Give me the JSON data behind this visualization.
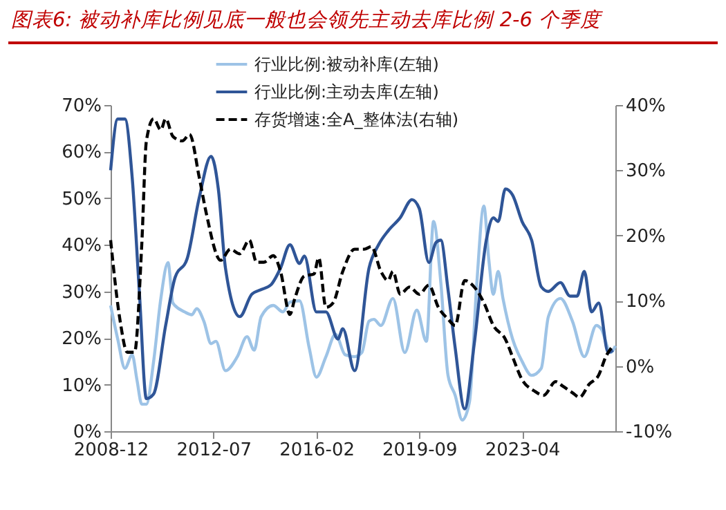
{
  "chart_data": {
    "type": "line",
    "title": "图表6:  被动补库比例见底一般也会领先主动去库比例 2-6 个季度",
    "legend": "top",
    "xlim": [
      "2008-12",
      "2026-07"
    ],
    "xticks": [
      "2008-12",
      "2012-07",
      "2016-02",
      "2019-09",
      "2023-04"
    ],
    "ylim": [
      0,
      70
    ],
    "yticks": [
      {
        "value": 0,
        "label": "0%"
      },
      {
        "value": 10,
        "label": "10%"
      },
      {
        "value": 20,
        "label": "20%"
      },
      {
        "value": 30,
        "label": "30%"
      },
      {
        "value": 40,
        "label": "40%"
      },
      {
        "value": 50,
        "label": "50%"
      },
      {
        "value": 60,
        "label": "60%"
      },
      {
        "value": 70,
        "label": "70%"
      }
    ],
    "y2lim": [
      -10,
      40
    ],
    "y2ticks": [
      {
        "value": -10,
        "label": "-10%"
      },
      {
        "value": 0,
        "label": "0%"
      },
      {
        "value": 10,
        "label": "10%"
      },
      {
        "value": 20,
        "label": "20%"
      },
      {
        "value": 30,
        "label": "30%"
      },
      {
        "value": 40,
        "label": "40%"
      }
    ],
    "series": [
      {
        "name": "行业比例:被动补库(左轴)",
        "color": "#9dc3e6",
        "line_style": "solid",
        "x": [
          "2008-12",
          "2009-03",
          "2009-06",
          "2009-09",
          "2009-11",
          "2010-01",
          "2010-03",
          "2010-06",
          "2010-09",
          "2010-12",
          "2011-02",
          "2011-07",
          "2011-10",
          "2011-12",
          "2012-03",
          "2012-06",
          "2012-08",
          "2012-12",
          "2013-05",
          "2013-09",
          "2013-12",
          "2014-03",
          "2014-08",
          "2014-12",
          "2015-03",
          "2015-07",
          "2015-11",
          "2016-02",
          "2016-06",
          "2016-10",
          "2017-02",
          "2017-06",
          "2017-09",
          "2017-12",
          "2018-02",
          "2018-05",
          "2018-10",
          "2019-03",
          "2019-08",
          "2019-12",
          "2020-03",
          "2020-06",
          "2020-09",
          "2020-12",
          "2021-03",
          "2021-06",
          "2021-09",
          "2021-12",
          "2022-02",
          "2022-04",
          "2022-06",
          "2022-08",
          "2022-12",
          "2023-04",
          "2023-08",
          "2023-12",
          "2024-03",
          "2024-08",
          "2025-01",
          "2025-06",
          "2025-11",
          "2026-01",
          "2026-05",
          "2026-07"
        ],
        "values": [
          27,
          19.8,
          13.5,
          16.4,
          11,
          5.8,
          5.8,
          15,
          28.5,
          36.2,
          27.5,
          25.6,
          25,
          26.3,
          23.6,
          18.8,
          19.3,
          13,
          16,
          20.3,
          17.4,
          24.6,
          27,
          25.6,
          27.7,
          28,
          17.9,
          11.6,
          16,
          20.8,
          16.4,
          16,
          16.9,
          23.6,
          24,
          22.7,
          28.5,
          16.9,
          26,
          19.3,
          45,
          32,
          12,
          7.7,
          2.4,
          6.3,
          31.4,
          48.3,
          37,
          29.4,
          34.3,
          28.5,
          19.8,
          15,
          12,
          13.5,
          24.6,
          28.5,
          23.6,
          16,
          22.7,
          22,
          16.9,
          18.3
        ]
      },
      {
        "name": "行业比例:主动去库(左轴)",
        "color": "#2f5597",
        "line_style": "solid",
        "x": [
          "2008-12",
          "2009-03",
          "2009-06",
          "2009-09",
          "2009-12",
          "2010-03",
          "2010-06",
          "2010-11",
          "2011-03",
          "2011-08",
          "2012-01",
          "2012-06",
          "2012-09",
          "2012-12",
          "2013-06",
          "2013-11",
          "2014-03",
          "2014-07",
          "2014-11",
          "2015-03",
          "2015-07",
          "2015-09",
          "2016-02",
          "2016-06",
          "2016-11",
          "2017-01",
          "2017-06",
          "2017-12",
          "2018-04",
          "2018-08",
          "2019-01",
          "2019-06",
          "2019-09",
          "2020-01",
          "2020-04",
          "2020-06",
          "2020-09",
          "2020-12",
          "2021-04",
          "2021-08",
          "2022-01",
          "2022-04",
          "2022-06",
          "2022-09",
          "2022-12",
          "2023-04",
          "2023-08",
          "2023-12",
          "2024-03",
          "2024-08",
          "2024-12",
          "2025-03",
          "2025-06",
          "2025-09",
          "2025-12",
          "2026-04",
          "2026-06"
        ],
        "values": [
          56,
          67,
          67,
          54.5,
          30,
          7,
          8,
          22.7,
          33,
          37,
          50,
          59,
          52,
          35,
          24.6,
          29.4,
          30.4,
          31.4,
          35,
          40,
          36,
          37.6,
          25.6,
          25.6,
          19.8,
          22,
          13,
          35,
          40,
          43,
          45.8,
          49.7,
          47.8,
          36.2,
          40.5,
          41,
          30.4,
          17.9,
          4.8,
          18.8,
          41,
          45.8,
          45,
          52,
          50.7,
          45,
          41,
          31,
          30,
          31.9,
          29,
          29,
          34.3,
          25.6,
          27.5,
          16.9,
          17.4
        ]
      },
      {
        "name": "存货增速:全A_整体法(右轴)",
        "color": "#000000",
        "line_style": "dashed",
        "axis": "y2",
        "x": [
          "2008-12",
          "2009-04",
          "2009-07",
          "2009-10",
          "2010-01",
          "2010-03",
          "2010-06",
          "2010-09",
          "2010-11",
          "2011-02",
          "2011-06",
          "2011-09",
          "2012-01",
          "2012-04",
          "2012-10",
          "2013-02",
          "2013-06",
          "2013-10",
          "2014-01",
          "2014-04",
          "2014-08",
          "2014-11",
          "2015-03",
          "2015-05",
          "2015-09",
          "2016-01",
          "2016-03",
          "2016-06",
          "2016-09",
          "2017-01",
          "2017-06",
          "2017-10",
          "2018-01",
          "2018-05",
          "2018-08",
          "2018-10",
          "2019-01",
          "2019-05",
          "2019-09",
          "2020-01",
          "2020-05",
          "2020-09",
          "2020-12",
          "2021-04",
          "2021-08",
          "2021-12",
          "2022-04",
          "2022-09",
          "2022-12",
          "2023-04",
          "2023-09",
          "2024-01",
          "2024-06",
          "2024-09",
          "2025-01",
          "2025-04",
          "2025-08",
          "2025-12",
          "2026-03",
          "2026-06"
        ],
        "values": [
          19.3,
          6.9,
          2.1,
          2.1,
          18.6,
          34.5,
          37.9,
          36.2,
          37.9,
          35.2,
          34.5,
          35.5,
          29,
          23.4,
          16.2,
          17.9,
          17.2,
          19.3,
          15.9,
          15.9,
          16.9,
          14.5,
          7.9,
          10.3,
          13.8,
          14.1,
          16.6,
          9,
          9.7,
          14.5,
          17.9,
          17.9,
          18.3,
          14.5,
          13.1,
          14.5,
          11,
          12.1,
          11,
          12.4,
          9,
          7.2,
          6.2,
          13.1,
          12.1,
          9.7,
          6.2,
          4.1,
          1.4,
          -2.1,
          -3.8,
          -4.5,
          -2.4,
          -3.1,
          -4.1,
          -4.8,
          -2.8,
          -1.4,
          1.4,
          3.1
        ]
      }
    ]
  }
}
